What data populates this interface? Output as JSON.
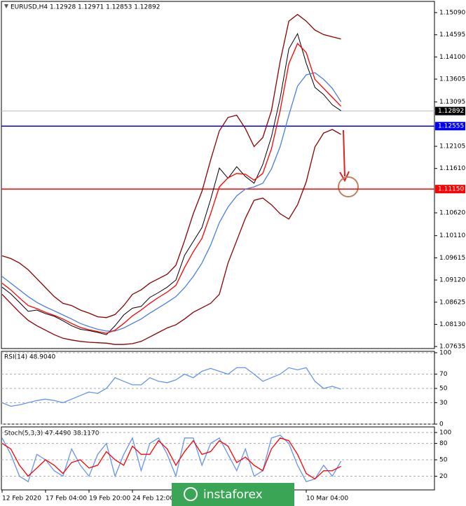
{
  "chart_data": [
    {
      "type": "line",
      "title": "EURUSD,H4  1.12928 1.12971 1.12853 1.12892",
      "categories": [
        "12 Feb 2020",
        null,
        null,
        null,
        null,
        "17 Feb 04:00",
        null,
        null,
        null,
        null,
        "19 Feb 20:00",
        null,
        null,
        null,
        null,
        "24 Feb 12:00",
        null,
        null,
        null,
        null,
        null,
        null,
        null,
        null,
        null,
        null,
        null,
        null,
        null,
        null,
        null,
        null,
        null,
        null,
        null,
        "10 Mar 04:00",
        null,
        null,
        null,
        null,
        null,
        null,
        null,
        null,
        null,
        null,
        null,
        null,
        null,
        null
      ],
      "series": [
        {
          "color": "#000000",
          "values": [
            1.0896,
            1.0881,
            1.0862,
            1.0842,
            1.0845,
            1.0837,
            1.0831,
            1.0821,
            1.081,
            1.0802,
            1.0799,
            1.0795,
            1.079,
            1.081,
            1.0834,
            1.0849,
            1.0853,
            1.0873,
            1.0884,
            1.0896,
            1.0912,
            1.0967,
            1.0998,
            1.1029,
            1.1092,
            1.1162,
            1.1139,
            1.1165,
            1.1143,
            1.1128,
            1.117,
            1.1232,
            1.1318,
            1.1428,
            1.1462,
            1.1396,
            1.1342,
            1.1326,
            1.1303,
            1.129,
            null,
            null,
            null,
            null,
            null,
            null,
            null,
            null,
            null,
            null
          ]
        },
        {
          "color": "#8b0000",
          "values": [
            1.0966,
            1.096,
            1.095,
            1.0935,
            1.0915,
            1.0895,
            1.0875,
            1.086,
            1.0855,
            1.0845,
            1.0838,
            1.083,
            1.0828,
            1.0835,
            1.0855,
            1.088,
            1.089,
            1.0905,
            1.0915,
            1.0925,
            1.0945,
            1.1,
            1.106,
            1.111,
            1.118,
            1.1245,
            1.1275,
            1.128,
            1.125,
            1.121,
            1.123,
            1.129,
            1.14,
            1.149,
            1.1505,
            1.149,
            1.147,
            1.146,
            1.1455,
            1.145,
            null,
            null,
            null,
            null,
            null,
            null,
            null,
            null,
            null,
            null
          ]
        },
        {
          "color": "#8b0000",
          "values": [
            1.088,
            1.086,
            1.084,
            1.0822,
            1.081,
            1.08,
            1.079,
            1.0782,
            1.0778,
            1.0775,
            1.0773,
            1.0772,
            1.0771,
            1.0768,
            1.0768,
            1.077,
            1.0775,
            1.0785,
            1.0795,
            1.0805,
            1.0812,
            1.0825,
            1.084,
            1.085,
            1.086,
            1.088,
            1.095,
            1.1,
            1.105,
            1.109,
            1.1095,
            1.108,
            1.106,
            1.1048,
            1.108,
            1.1131,
            1.1209,
            1.124,
            1.1248,
            1.1237,
            null,
            null,
            null,
            null,
            null,
            null,
            null,
            null,
            null,
            null
          ]
        },
        {
          "color": "#4a7fe0",
          "values": [
            1.092,
            1.0905,
            1.089,
            1.0875,
            1.0862,
            1.0852,
            1.0843,
            1.0834,
            1.0825,
            1.0815,
            1.0808,
            1.0802,
            1.0798,
            1.0798,
            1.0805,
            1.0815,
            1.0825,
            1.0838,
            1.085,
            1.0862,
            1.0875,
            1.0895,
            1.092,
            1.095,
            1.099,
            1.104,
            1.1075,
            1.11,
            1.1115,
            1.112,
            1.1128,
            1.116,
            1.121,
            1.128,
            1.1345,
            1.137,
            1.1375,
            1.136,
            1.134,
            1.131,
            null,
            null,
            null,
            null,
            null,
            null,
            null,
            null,
            null,
            null
          ]
        },
        {
          "color": "#ff0000",
          "values": [
            1.0905,
            1.089,
            1.0872,
            1.0855,
            1.0848,
            1.084,
            1.0833,
            1.0825,
            1.0815,
            1.0806,
            1.0801,
            1.0797,
            1.0793,
            1.08,
            1.0815,
            1.0832,
            1.0845,
            1.086,
            1.0873,
            1.0885,
            1.09,
            1.094,
            1.0975,
            1.1005,
            1.106,
            1.112,
            1.114,
            1.115,
            1.1148,
            1.1135,
            1.115,
            1.1205,
            1.129,
            1.1395,
            1.144,
            1.142,
            1.136,
            1.134,
            1.132,
            1.13,
            null,
            null,
            null,
            null,
            null,
            null,
            null,
            null,
            null,
            null
          ]
        }
      ],
      "ylim": [
        1.0759,
        1.1534
      ],
      "yticks": [
        {
          "value": 1.1509,
          "label": "1.15090"
        },
        1.14595,
        {
          "value": 1.141,
          "label": "1.14100"
        },
        1.13605,
        1.13095,
        1.12105,
        {
          "value": 1.1161,
          "label": "1.11610"
        },
        {
          "value": 1.1062,
          "label": "1.10620"
        },
        {
          "value": 1.1011,
          "label": "1.10110"
        },
        1.09615,
        {
          "value": 1.0912,
          "label": "1.09120"
        },
        1.08625,
        {
          "value": 1.0813,
          "label": "1.08130"
        },
        1.07635
      ],
      "grid": false,
      "current_price": 1.12892,
      "hlines": [
        {
          "value": 1.12555,
          "color": "#0000ff"
        },
        {
          "value": 1.1115,
          "label": "1.11150",
          "color": "#ff0000"
        }
      ]
    },
    {
      "type": "line",
      "title": "RSI(14) 48.9040",
      "series": [
        {
          "color": "#6495ed",
          "values": [
            30,
            25,
            27,
            30,
            33,
            35,
            33,
            30,
            35,
            40,
            45,
            43,
            50,
            65,
            60,
            55,
            55,
            65,
            60,
            58,
            62,
            70,
            65,
            74,
            78,
            74,
            70,
            79,
            79,
            70,
            60,
            65,
            70,
            79,
            76,
            79,
            60,
            50,
            53,
            48.904
          ]
        }
      ],
      "ylim": [
        0,
        100
      ],
      "yticks": [
        0,
        30,
        50,
        70,
        100
      ],
      "grid": true
    },
    {
      "type": "line",
      "title": "Stoch(5,3,3) 47.4490 38.1170",
      "series": [
        {
          "color": "#6495ed",
          "values": [
            90,
            60,
            20,
            10,
            60,
            50,
            30,
            20,
            70,
            40,
            20,
            60,
            80,
            20,
            60,
            90,
            30,
            80,
            90,
            60,
            20,
            90,
            90,
            40,
            80,
            90,
            60,
            30,
            70,
            20,
            30,
            90,
            95,
            80,
            40,
            10,
            15,
            40,
            20,
            47.449
          ]
        },
        {
          "color": "#ff0000",
          "values": [
            80,
            70,
            40,
            20,
            35,
            50,
            40,
            25,
            45,
            50,
            35,
            40,
            65,
            50,
            40,
            75,
            60,
            60,
            85,
            70,
            40,
            65,
            85,
            60,
            65,
            85,
            75,
            45,
            55,
            40,
            30,
            70,
            90,
            85,
            60,
            25,
            15,
            30,
            30,
            38.117
          ]
        }
      ],
      "ylim": [
        0,
        100
      ],
      "yticks": [
        20,
        50,
        80,
        100
      ],
      "grid": true
    }
  ],
  "watermark": "instaforex"
}
